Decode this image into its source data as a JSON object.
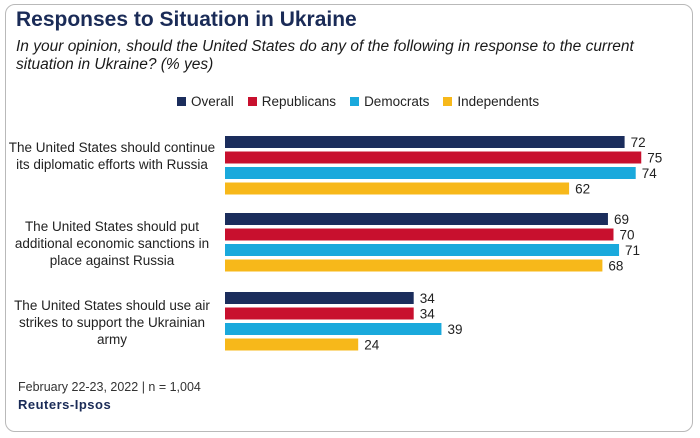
{
  "title": "Responses to Situation in Ukraine",
  "subtitle": "In your opinion, should the United States do any of the following in response to the current situation in Ukraine? (% yes)",
  "footnote": "February 22-23, 2022 | n = 1,004",
  "brand": "Reuters-Ipsos",
  "colors": {
    "Overall": "#1b2d5c",
    "Republicans": "#c8102e",
    "Democrats": "#1aa9dc",
    "Independents": "#f7b81a"
  },
  "chart_data": {
    "type": "bar",
    "orientation": "horizontal",
    "categories": [
      "The United States should continue its diplomatic efforts with Russia",
      "The United States should put additional economic sanctions in place against Russia",
      "The United States should use air strikes to support the Ukrainian army"
    ],
    "series": [
      {
        "name": "Overall",
        "values": [
          72,
          69,
          34
        ]
      },
      {
        "name": "Republicans",
        "values": [
          75,
          70,
          34
        ]
      },
      {
        "name": "Democrats",
        "values": [
          74,
          71,
          39
        ]
      },
      {
        "name": "Independents",
        "values": [
          62,
          68,
          24
        ]
      }
    ],
    "xlim": [
      0,
      100
    ],
    "legend_position": "top",
    "grid": false
  }
}
